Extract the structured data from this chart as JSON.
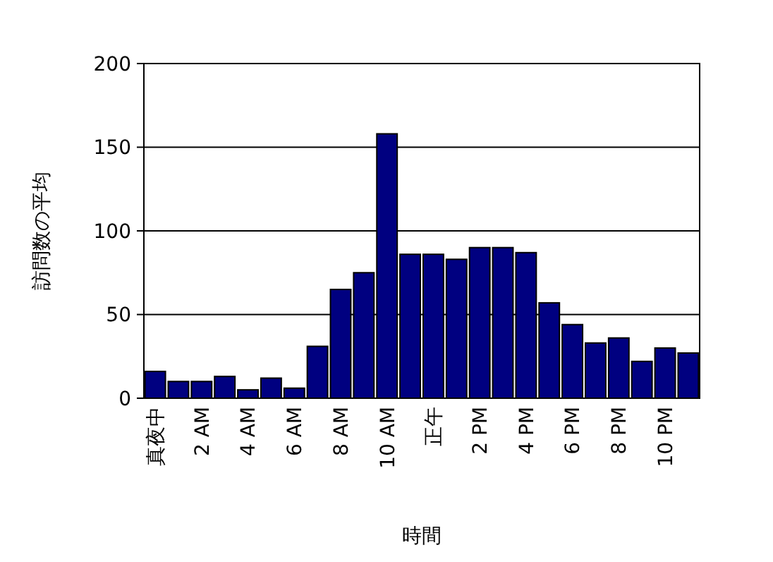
{
  "chart_data": {
    "type": "bar",
    "xlabel": "時間",
    "ylabel": "訪問数の平均",
    "categories": [
      "真夜中",
      null,
      "2 AM",
      null,
      "4 AM",
      null,
      "6 AM",
      null,
      "8 AM",
      null,
      "10 AM",
      null,
      "正午",
      null,
      "2 PM",
      null,
      "4 PM",
      null,
      "6 PM",
      null,
      "8 PM",
      null,
      "10 PM",
      null
    ],
    "values": [
      16,
      10,
      10,
      13,
      5,
      12,
      6,
      31,
      65,
      75,
      158,
      86,
      86,
      83,
      90,
      90,
      87,
      57,
      44,
      33,
      36,
      22,
      30,
      27
    ],
    "color": "#000080",
    "ylim": [
      0,
      200
    ],
    "yticks": [
      0,
      50,
      100,
      150,
      200
    ],
    "grid": "y"
  }
}
